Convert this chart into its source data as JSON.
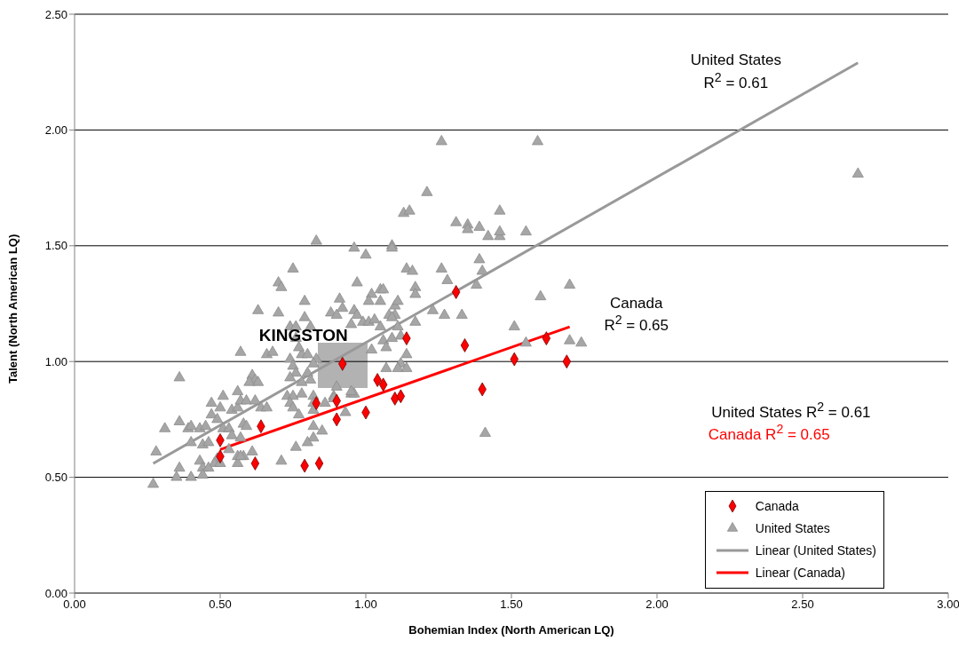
{
  "chart_data": {
    "type": "scatter",
    "xlabel": "Bohemian Index (North American LQ)",
    "ylabel": "Talent (North American LQ)",
    "xlim": [
      0,
      3
    ],
    "ylim": [
      0,
      2.5
    ],
    "xticks": [
      {
        "value": 0,
        "label": "0.00"
      },
      {
        "value": 0.5,
        "label": "0.50"
      },
      {
        "value": 1,
        "label": "1.00"
      },
      {
        "value": 1.5,
        "label": "1.50"
      },
      {
        "value": 2,
        "label": "2.00"
      },
      {
        "value": 2.5,
        "label": "2.50"
      },
      {
        "value": 3,
        "label": "3.00"
      }
    ],
    "yticks": [
      {
        "value": 0,
        "label": "0.00"
      },
      {
        "value": 0.5,
        "label": "0.50"
      },
      {
        "value": 1,
        "label": "1.00"
      },
      {
        "value": 1.5,
        "label": "1.50"
      },
      {
        "value": 2,
        "label": "2.00"
      },
      {
        "value": 2.5,
        "label": "2.50"
      }
    ],
    "grid": "y",
    "legend": "bottom right",
    "series": [
      {
        "name": "Canada",
        "marker": "diamond",
        "color": "#ff0000",
        "x": [
          0.5,
          0.5,
          0.62,
          0.64,
          1.14,
          0.92,
          1.04,
          1.06,
          1.1,
          1.12,
          1.0,
          0.9,
          0.83,
          0.9,
          0.79,
          0.84,
          1.31,
          1.34,
          1.51,
          1.62,
          1.69,
          1.4
        ],
        "values": [
          0.66,
          0.59,
          0.56,
          0.72,
          1.1,
          0.99,
          0.92,
          0.9,
          0.84,
          0.85,
          0.78,
          0.83,
          0.82,
          0.75,
          0.55,
          0.56,
          1.3,
          1.07,
          1.01,
          1.1,
          1.0,
          0.88
        ]
      },
      {
        "name": "United States",
        "marker": "triangle",
        "color": "#a6a6a6",
        "x": [
          1.26,
          1.59,
          1.21,
          1.13,
          1.15,
          1.31,
          1.35,
          1.35,
          1.39,
          1.46,
          1.42,
          1.46,
          1.46,
          1.55,
          1.09,
          1.39,
          1.4,
          1.14,
          1.16,
          1.26,
          1.28,
          1.17,
          1.17,
          1.38,
          1.7,
          1.6,
          1.23,
          1.27,
          1.33,
          1.17,
          1.11,
          1.1,
          1.11,
          1.1,
          1.12,
          1.51,
          1.55,
          1.7,
          1.74,
          1.14,
          1.12,
          1.11,
          1.14,
          1.41,
          2.69,
          0.83,
          0.96,
          1.09,
          1.0,
          0.75,
          0.97,
          1.05,
          1.06,
          0.79,
          0.91,
          0.92,
          1.02,
          1.01,
          1.05,
          0.88,
          0.9,
          0.96,
          0.97,
          1.08,
          1.09,
          0.79,
          0.95,
          0.99,
          1.01,
          1.03,
          1.05,
          0.74,
          0.76,
          0.81,
          0.74,
          0.78,
          0.8,
          0.77,
          0.76,
          1.02,
          1.06,
          1.07,
          1.09,
          1.07,
          0.75,
          0.76,
          0.8,
          0.81,
          0.83,
          0.82,
          0.74,
          0.78,
          0.73,
          0.75,
          0.78,
          0.74,
          0.75,
          0.77,
          0.82,
          0.82,
          0.86,
          0.89,
          0.89,
          0.95,
          0.96,
          0.82,
          0.93,
          0.82,
          0.82,
          0.8,
          0.85,
          0.76,
          0.9,
          0.95,
          0.7,
          0.57,
          0.66,
          0.68,
          0.36,
          0.61,
          0.62,
          0.63,
          0.6,
          0.51,
          0.56,
          0.47,
          0.5,
          0.47,
          0.49,
          0.54,
          0.56,
          0.57,
          0.59,
          0.62,
          0.64,
          0.66,
          0.36,
          0.31,
          0.39,
          0.4,
          0.43,
          0.45,
          0.51,
          0.53,
          0.58,
          0.59,
          0.4,
          0.44,
          0.46,
          0.54,
          0.57,
          0.53,
          0.61,
          0.56,
          0.58,
          0.28,
          0.43,
          0.49,
          0.48,
          0.44,
          0.46,
          0.36,
          0.35,
          0.4,
          0.44,
          0.27,
          0.5,
          0.56,
          0.57,
          0.71,
          0.7,
          0.71,
          0.63
        ],
        "values": [
          1.95,
          1.95,
          1.73,
          1.64,
          1.65,
          1.6,
          1.59,
          1.57,
          1.58,
          1.65,
          1.54,
          1.54,
          1.56,
          1.56,
          1.5,
          1.44,
          1.39,
          1.4,
          1.39,
          1.4,
          1.35,
          1.32,
          1.29,
          1.33,
          1.33,
          1.28,
          1.22,
          1.2,
          1.2,
          1.17,
          1.15,
          1.24,
          1.26,
          1.2,
          1.11,
          1.15,
          1.08,
          1.09,
          1.08,
          1.03,
          0.99,
          0.97,
          0.97,
          0.69,
          1.81,
          1.52,
          1.49,
          1.49,
          1.46,
          1.4,
          1.34,
          1.31,
          1.31,
          1.26,
          1.27,
          1.23,
          1.29,
          1.26,
          1.26,
          1.21,
          1.2,
          1.22,
          1.2,
          1.2,
          1.19,
          1.19,
          1.16,
          1.17,
          1.17,
          1.18,
          1.15,
          1.15,
          1.15,
          1.15,
          1.01,
          1.03,
          1.03,
          1.06,
          1.1,
          1.05,
          1.09,
          1.06,
          1.1,
          0.97,
          0.98,
          0.95,
          0.95,
          0.92,
          1.01,
          0.99,
          0.93,
          0.91,
          0.85,
          0.85,
          0.86,
          0.82,
          0.8,
          0.77,
          0.85,
          0.82,
          0.82,
          0.85,
          0.84,
          0.86,
          0.86,
          0.79,
          0.78,
          0.72,
          0.67,
          0.65,
          0.7,
          0.63,
          0.89,
          0.87,
          1.21,
          1.04,
          1.03,
          1.04,
          0.93,
          0.94,
          0.92,
          0.91,
          0.91,
          0.85,
          0.87,
          0.82,
          0.8,
          0.77,
          0.75,
          0.79,
          0.8,
          0.83,
          0.83,
          0.83,
          0.8,
          0.8,
          0.74,
          0.71,
          0.71,
          0.72,
          0.71,
          0.72,
          0.71,
          0.71,
          0.73,
          0.72,
          0.65,
          0.64,
          0.65,
          0.68,
          0.67,
          0.62,
          0.61,
          0.59,
          0.59,
          0.61,
          0.57,
          0.58,
          0.56,
          0.54,
          0.54,
          0.54,
          0.5,
          0.5,
          0.51,
          0.47,
          0.56,
          0.56,
          0.59,
          0.57,
          1.34,
          1.32,
          1.22
        ]
      },
      {
        "name": "Linear (United States)",
        "type": "line",
        "marker": "none",
        "color": "#999999",
        "x": [
          0.27,
          2.69
        ],
        "values": [
          0.56,
          2.29
        ]
      },
      {
        "name": "Linear (Canada)",
        "type": "line",
        "marker": "none",
        "color": "#ff0000",
        "x": [
          0.5,
          1.7
        ],
        "values": [
          0.62,
          1.15
        ]
      }
    ],
    "annotations": [
      {
        "text": "KINGSTON",
        "x": 0.92,
        "y": 0.99
      },
      "United States\nR$^{2}$ = 0.61",
      "Canada\nR$^{2}$ = 0.65",
      "United States R$^{2}$ = 0.61",
      "Canada R$^{2}$ = 0.65"
    ]
  }
}
